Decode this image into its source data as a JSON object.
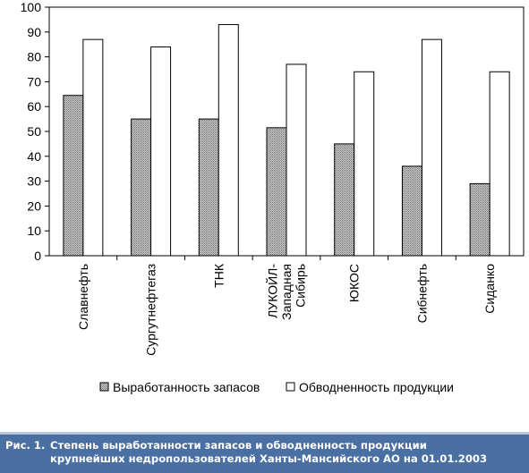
{
  "chart_data": {
    "type": "bar",
    "categories": [
      [
        "Славнефть"
      ],
      [
        "Сургутнефтегаз"
      ],
      [
        "ТНК"
      ],
      [
        "ЛУКОЙЛ-",
        "Западная",
        "Сибирь"
      ],
      [
        "ЮКОС"
      ],
      [
        "Сибнефть"
      ],
      [
        "Сиданко"
      ]
    ],
    "series": [
      {
        "name": "Выработанность запасов",
        "values": [
          64.5,
          55,
          55,
          51.5,
          45,
          36,
          29
        ],
        "color": "#b0b0b0",
        "pattern": "dotted"
      },
      {
        "name": "Обводненность продукции",
        "values": [
          87,
          84,
          93,
          77,
          74,
          87,
          74
        ],
        "color": "#ffffff"
      }
    ],
    "yticks": [
      0,
      10,
      20,
      30,
      40,
      50,
      60,
      70,
      80,
      90,
      100
    ],
    "ylim": [
      0,
      100
    ],
    "legend_position": "bottom",
    "grid": false
  },
  "caption": {
    "number": "Рис. 1.",
    "line1": "Степень выработанности запасов и обводненность продукции",
    "line2": "крупнейших недропользователей Ханты-Мансийского АО на 01.01.2003",
    "background_color": "#4a6fa3"
  }
}
